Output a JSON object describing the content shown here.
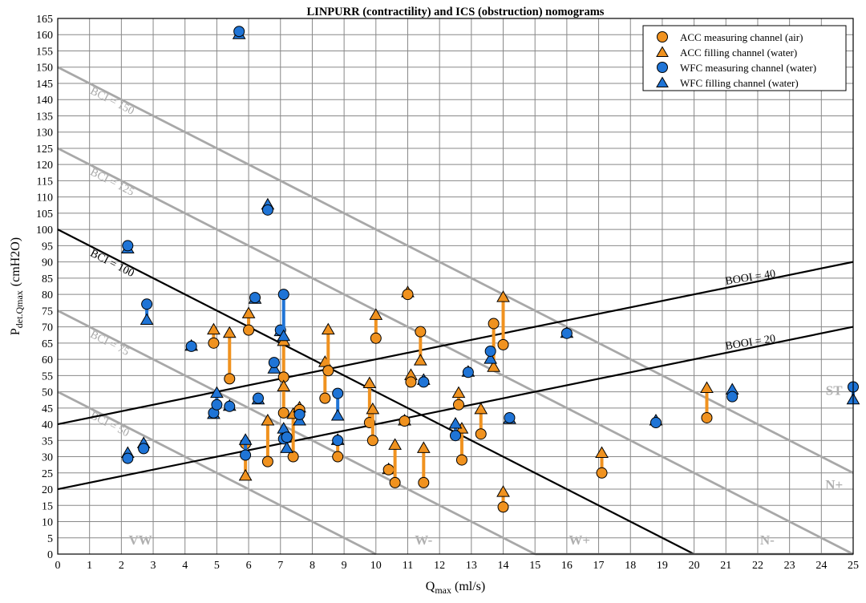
{
  "chart_data": {
    "type": "scatter",
    "title": "LINPURR (contractility) and ICS (obstruction) nomograms",
    "xlabel_main": "Q",
    "xlabel_sub": "max",
    "xlabel_unit": "(ml/s)",
    "ylabel_main": "P",
    "ylabel_sub": "det.Qmax",
    "ylabel_unit": "(cmH2O)",
    "xlim": [
      0,
      25
    ],
    "ylim": [
      0,
      165
    ],
    "xticks": [
      0,
      1,
      2,
      3,
      4,
      5,
      6,
      7,
      8,
      9,
      10,
      11,
      12,
      13,
      14,
      15,
      16,
      17,
      18,
      19,
      20,
      21,
      22,
      23,
      24,
      25
    ],
    "yticks": [
      0,
      5,
      10,
      15,
      20,
      25,
      30,
      35,
      40,
      45,
      50,
      55,
      60,
      65,
      70,
      75,
      80,
      85,
      90,
      95,
      100,
      105,
      110,
      115,
      120,
      125,
      130,
      135,
      140,
      145,
      150,
      155,
      160,
      165
    ],
    "grid": true,
    "legend_position": "top-right",
    "colors": {
      "acc": "#f0921f",
      "wfc": "#1f74d6",
      "bci_gray": "#a8a8a8",
      "black": "#000000",
      "grid": "#888888",
      "zone_label": "#b0b0b0"
    },
    "legend": [
      {
        "label": "ACC measuring channel (air)",
        "color": "#f0921f",
        "marker": "circle"
      },
      {
        "label": "ACC filling channel (water)",
        "color": "#f0921f",
        "marker": "triangle"
      },
      {
        "label": "WFC measuring channel (water)",
        "color": "#1f74d6",
        "marker": "circle"
      },
      {
        "label": "WFC filling channel (water)",
        "color": "#1f74d6",
        "marker": "triangle"
      }
    ],
    "reference_lines": [
      {
        "label": "BCI = 150",
        "p1": [
          0,
          150
        ],
        "p2": [
          25,
          25
        ],
        "color": "gray",
        "label_at": [
          1.0,
          142.0
        ],
        "angle": 27
      },
      {
        "label": "BCI = 125",
        "p1": [
          0,
          125
        ],
        "p2": [
          25,
          0
        ],
        "color": "gray",
        "label_at": [
          1.0,
          117.0
        ],
        "angle": 27
      },
      {
        "label": "BCI = 100",
        "p1": [
          0,
          100
        ],
        "p2": [
          20,
          0
        ],
        "color": "black",
        "label_at": [
          1.0,
          92.0
        ],
        "angle": 27
      },
      {
        "label": "BCI = 75",
        "p1": [
          0,
          75
        ],
        "p2": [
          15,
          0
        ],
        "color": "gray",
        "label_at": [
          1.0,
          67.0
        ],
        "angle": 27
      },
      {
        "label": "BCI = 50",
        "p1": [
          0,
          50
        ],
        "p2": [
          10,
          0
        ],
        "color": "gray",
        "label_at": [
          1.0,
          42.0
        ],
        "angle": 27
      },
      {
        "label": "BOOI = 40",
        "p1": [
          0,
          40
        ],
        "p2": [
          25,
          90
        ],
        "color": "black",
        "label_at": [
          21.0,
          83.0
        ],
        "angle": -9
      },
      {
        "label": "BOOI = 20",
        "p1": [
          0,
          20
        ],
        "p2": [
          25,
          70
        ],
        "color": "black",
        "label_at": [
          21.0,
          63.0
        ],
        "angle": -9
      },
      {
        "label": "",
        "p1": [
          15,
          0
        ],
        "p2": [
          25,
          0
        ],
        "color": "gray"
      }
    ],
    "zone_labels": [
      {
        "text": "VW",
        "at": [
          2.6,
          3
        ]
      },
      {
        "text": "W-",
        "at": [
          11.5,
          3
        ]
      },
      {
        "text": "W+",
        "at": [
          16.4,
          3
        ]
      },
      {
        "text": "N-",
        "at": [
          22.3,
          3
        ]
      },
      {
        "text": "N+",
        "at": [
          24.4,
          20
        ]
      },
      {
        "text": "ST",
        "at": [
          24.4,
          49
        ]
      }
    ],
    "series": [
      {
        "name": "ACC",
        "color": "#f0921f",
        "pairs": [
          {
            "x": 4.9,
            "measuring": 65,
            "filling": 69
          },
          {
            "x": 5.4,
            "measuring": 54,
            "filling": 68
          },
          {
            "x": 6.0,
            "measuring": 69,
            "filling": 74
          },
          {
            "x": 5.9,
            "measuring": 34,
            "filling": 24
          },
          {
            "x": 6.6,
            "measuring": 28.5,
            "filling": 41
          },
          {
            "x": 7.1,
            "measuring": 54.5,
            "filling": 65.5
          },
          {
            "x": 7.1,
            "measuring": 43.5,
            "filling": 51.5
          },
          {
            "x": 7.4,
            "measuring": 30,
            "filling": 43
          },
          {
            "x": 7.6,
            "measuring": 44.5,
            "filling": 45
          },
          {
            "x": 8.4,
            "measuring": 48,
            "filling": 59
          },
          {
            "x": 8.5,
            "measuring": 56.5,
            "filling": 69
          },
          {
            "x": 8.8,
            "measuring": 30,
            "filling": 35
          },
          {
            "x": 9.8,
            "measuring": 40.5,
            "filling": 52.5
          },
          {
            "x": 9.9,
            "measuring": 35,
            "filling": 44.5
          },
          {
            "x": 10.0,
            "measuring": 66.5,
            "filling": 73.5
          },
          {
            "x": 10.4,
            "measuring": 26,
            "filling": 26
          },
          {
            "x": 10.6,
            "measuring": 22,
            "filling": 33.5
          },
          {
            "x": 10.9,
            "measuring": 41,
            "filling": 41
          },
          {
            "x": 11.0,
            "measuring": 80,
            "filling": 80.5
          },
          {
            "x": 11.1,
            "measuring": 53,
            "filling": 55
          },
          {
            "x": 11.4,
            "measuring": 68.5,
            "filling": 59.5
          },
          {
            "x": 11.5,
            "measuring": 22,
            "filling": 32.5
          },
          {
            "x": 12.6,
            "measuring": 46,
            "filling": 49.5
          },
          {
            "x": 12.7,
            "measuring": 29,
            "filling": 38.5
          },
          {
            "x": 13.3,
            "measuring": 37,
            "filling": 44.5
          },
          {
            "x": 13.7,
            "measuring": 71,
            "filling": 57.5
          },
          {
            "x": 14.0,
            "measuring": 64.5,
            "filling": 79
          },
          {
            "x": 14.0,
            "measuring": 14.5,
            "filling": 19
          },
          {
            "x": 17.1,
            "measuring": 25,
            "filling": 31
          },
          {
            "x": 20.4,
            "measuring": 42,
            "filling": 51
          }
        ]
      },
      {
        "name": "WFC",
        "color": "#1f74d6",
        "pairs": [
          {
            "x": 2.2,
            "measuring": 95,
            "filling": 94
          },
          {
            "x": 2.2,
            "measuring": 29.5,
            "filling": 31
          },
          {
            "x": 2.7,
            "measuring": 32.5,
            "filling": 34
          },
          {
            "x": 2.8,
            "measuring": 77,
            "filling": 72
          },
          {
            "x": 4.2,
            "measuring": 64,
            "filling": 64
          },
          {
            "x": 4.9,
            "measuring": 43.5,
            "filling": 43
          },
          {
            "x": 5.0,
            "measuring": 46,
            "filling": 49.5
          },
          {
            "x": 5.4,
            "measuring": 45.5,
            "filling": 45.5
          },
          {
            "x": 5.7,
            "measuring": 161,
            "filling": 160
          },
          {
            "x": 5.9,
            "measuring": 30.5,
            "filling": 35
          },
          {
            "x": 6.2,
            "measuring": 79,
            "filling": 78.5
          },
          {
            "x": 6.3,
            "measuring": 48,
            "filling": 47.5
          },
          {
            "x": 6.6,
            "measuring": 106,
            "filling": 107.5
          },
          {
            "x": 6.8,
            "measuring": 59,
            "filling": 57
          },
          {
            "x": 7.0,
            "measuring": 69,
            "filling": 68.5
          },
          {
            "x": 7.1,
            "measuring": 80,
            "filling": 67
          },
          {
            "x": 7.1,
            "measuring": 35.5,
            "filling": 38.5
          },
          {
            "x": 7.2,
            "measuring": 36,
            "filling": 32.5
          },
          {
            "x": 7.6,
            "measuring": 43,
            "filling": 41
          },
          {
            "x": 8.8,
            "measuring": 49.5,
            "filling": 42.5
          },
          {
            "x": 8.8,
            "measuring": 35,
            "filling": 35
          },
          {
            "x": 11.5,
            "measuring": 53,
            "filling": 53.5
          },
          {
            "x": 12.5,
            "measuring": 36.5,
            "filling": 40
          },
          {
            "x": 12.9,
            "measuring": 56,
            "filling": 56
          },
          {
            "x": 13.6,
            "measuring": 62.5,
            "filling": 60
          },
          {
            "x": 14.2,
            "measuring": 42,
            "filling": 41.5
          },
          {
            "x": 16.0,
            "measuring": 68,
            "filling": 68
          },
          {
            "x": 18.8,
            "measuring": 40.5,
            "filling": 41
          },
          {
            "x": 21.2,
            "measuring": 48.5,
            "filling": 50.5
          },
          {
            "x": 25.0,
            "measuring": 51.5,
            "filling": 47.5
          }
        ]
      }
    ]
  }
}
